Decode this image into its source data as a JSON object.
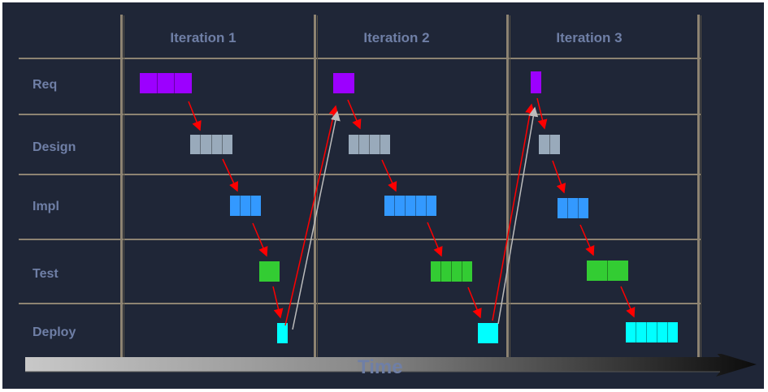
{
  "iterations": [
    "Iteration 1",
    "Iteration 2",
    "Iteration 3"
  ],
  "phases": [
    "Req",
    "Design",
    "Impl",
    "Test",
    "Deploy"
  ],
  "time_label": "Time",
  "colors": {
    "background": "#1f2637",
    "grid": "#8d8372",
    "label": "#6f7fa6",
    "req": "#9c00ff",
    "design": "#99aabb",
    "impl": "#3399ff",
    "test": "#33cc33",
    "deploy": "#00ffff",
    "arrow": "#ff0000",
    "feedback_arrow": "#bbbbbb"
  }
}
